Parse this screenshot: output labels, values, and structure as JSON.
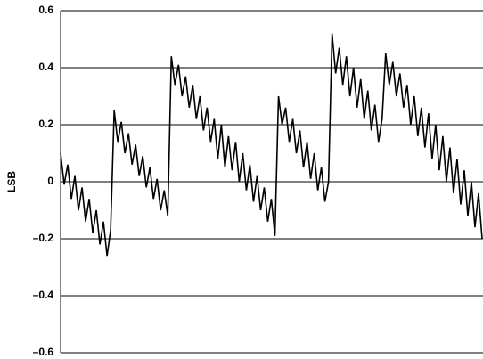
{
  "chart_data": {
    "type": "line",
    "y_label": "LSB",
    "color": "#000000",
    "ylim": [
      -0.6,
      0.6
    ],
    "yticks": [
      {
        "value": -0.6,
        "label": "–0.6"
      },
      {
        "value": -0.4,
        "label": "–0.4"
      },
      {
        "value": -0.2,
        "label": "–0.2"
      },
      0,
      0.2,
      0.4,
      0.6
    ],
    "grid": true,
    "values": [
      0.1,
      -0.01,
      0.06,
      -0.06,
      0.02,
      -0.1,
      -0.02,
      -0.14,
      -0.06,
      -0.18,
      -0.1,
      -0.22,
      -0.14,
      -0.26,
      -0.17,
      0.25,
      0.14,
      0.21,
      0.1,
      0.17,
      0.06,
      0.13,
      0.02,
      0.09,
      -0.02,
      0.05,
      -0.06,
      0.01,
      -0.1,
      -0.03,
      -0.12,
      0.44,
      0.34,
      0.41,
      0.3,
      0.37,
      0.26,
      0.34,
      0.22,
      0.3,
      0.18,
      0.26,
      0.14,
      0.22,
      0.08,
      0.2,
      0.05,
      0.16,
      0.04,
      0.14,
      0.0,
      0.1,
      -0.03,
      0.06,
      -0.07,
      0.02,
      -0.1,
      -0.02,
      -0.14,
      -0.06,
      -0.19,
      0.3,
      0.2,
      0.26,
      0.14,
      0.22,
      0.1,
      0.18,
      0.05,
      0.14,
      0.01,
      0.1,
      -0.03,
      0.05,
      -0.07,
      0.0,
      0.52,
      0.38,
      0.47,
      0.34,
      0.44,
      0.3,
      0.4,
      0.26,
      0.36,
      0.22,
      0.32,
      0.18,
      0.27,
      0.14,
      0.22,
      0.45,
      0.34,
      0.42,
      0.3,
      0.38,
      0.26,
      0.34,
      0.2,
      0.3,
      0.16,
      0.26,
      0.12,
      0.24,
      0.08,
      0.2,
      0.04,
      0.16,
      0.0,
      0.12,
      -0.04,
      0.08,
      -0.08,
      0.04,
      -0.12,
      0.0,
      -0.16,
      -0.04,
      -0.2
    ]
  }
}
